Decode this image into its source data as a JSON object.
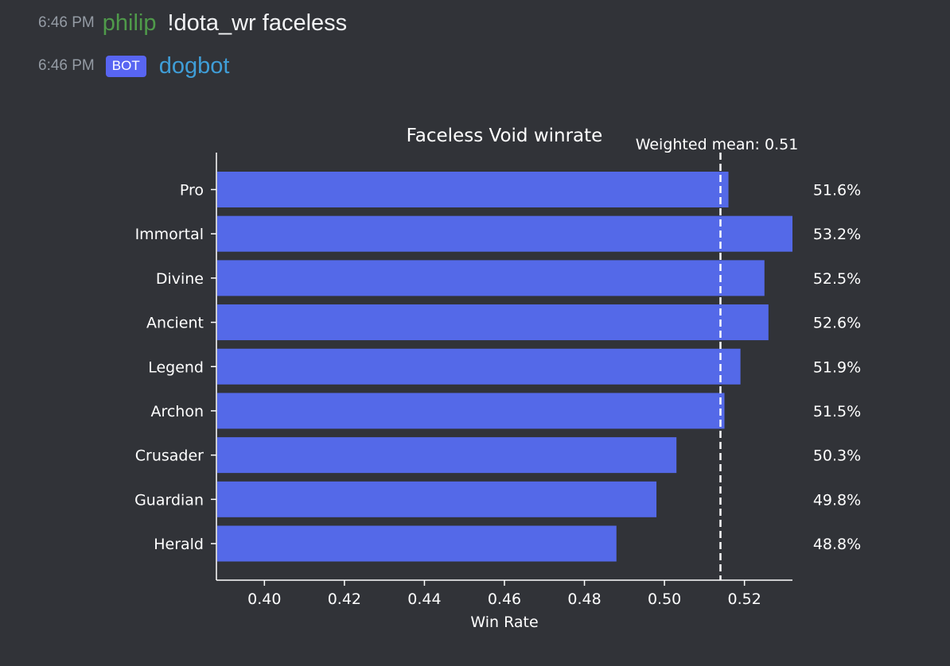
{
  "messages": [
    {
      "time": "6:46 PM",
      "author": "philip",
      "author_color": "#4f9a4a",
      "text": "!dota_wr faceless"
    },
    {
      "time": "6:46 PM",
      "badge": "BOT",
      "author": "dogbot",
      "author_color": "#3f9ed8"
    }
  ],
  "colors": {
    "background": "#313338",
    "bar": "#5469e8",
    "bot_badge": "#5865f2"
  },
  "chart_data": {
    "type": "bar",
    "orientation": "horizontal",
    "title": "Faceless Void winrate",
    "xlabel": "Win Rate",
    "ylabel": "",
    "categories": [
      "Pro",
      "Immortal",
      "Divine",
      "Ancient",
      "Legend",
      "Archon",
      "Crusader",
      "Guardian",
      "Herald"
    ],
    "values": [
      0.516,
      0.532,
      0.525,
      0.526,
      0.519,
      0.515,
      0.503,
      0.498,
      0.488
    ],
    "value_labels": [
      "51.6%",
      "53.2%",
      "52.5%",
      "52.6%",
      "51.9%",
      "51.5%",
      "50.3%",
      "49.8%",
      "48.8%"
    ],
    "xlim": [
      0.388,
      0.532
    ],
    "xticks": [
      0.4,
      0.42,
      0.44,
      0.46,
      0.48,
      0.5,
      0.52
    ],
    "xtick_labels": [
      "0.40",
      "0.42",
      "0.44",
      "0.46",
      "0.48",
      "0.50",
      "0.52"
    ],
    "reference_line": {
      "value": 0.514,
      "style": "dashed",
      "label": "Weighted mean: 0.51"
    },
    "grid": false,
    "legend": "none"
  }
}
